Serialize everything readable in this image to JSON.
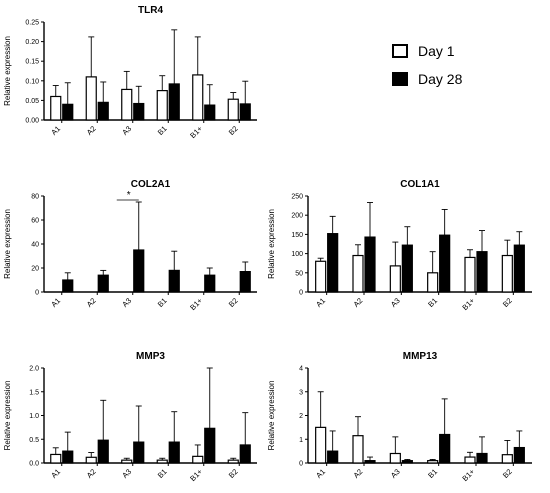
{
  "legend": {
    "day1": "Day 1",
    "day28": "Day 28"
  },
  "colors": {
    "day1_fill": "#ffffff",
    "day28_fill": "#000000",
    "stroke": "#000000"
  },
  "chart_data": [
    {
      "type": "bar",
      "title": "TLR4",
      "ylabel": "Relative expression",
      "categories": [
        "A1",
        "A2",
        "A3",
        "B1",
        "B1+",
        "B2"
      ],
      "ylim": [
        0,
        0.25
      ],
      "yticks": [
        "0.00",
        "0.05",
        "0.10",
        "0.15",
        "0.20",
        "0.25"
      ],
      "series": [
        {
          "name": "Day 1",
          "values": [
            0.06,
            0.11,
            0.078,
            0.075,
            0.115,
            0.053
          ],
          "errors": [
            0.028,
            0.102,
            0.046,
            0.038,
            0.097,
            0.017
          ]
        },
        {
          "name": "Day 28",
          "values": [
            0.04,
            0.045,
            0.042,
            0.092,
            0.038,
            0.041
          ],
          "errors": [
            0.055,
            0.052,
            0.044,
            0.138,
            0.052,
            0.058
          ]
        }
      ],
      "annotations": []
    },
    {
      "type": "bar",
      "title": "COL2A1",
      "ylabel": "Relative expression",
      "categories": [
        "A1",
        "A2",
        "A3",
        "B1",
        "B1+",
        "B2"
      ],
      "ylim": [
        0,
        80
      ],
      "yticks": [
        "0",
        "20",
        "40",
        "60",
        "80"
      ],
      "series": [
        {
          "name": "Day 1",
          "values": [
            0,
            0,
            0,
            0,
            0,
            0
          ],
          "errors": [
            0,
            0,
            0,
            0,
            0,
            0
          ]
        },
        {
          "name": "Day 28",
          "values": [
            10,
            14,
            35,
            18,
            14,
            17
          ],
          "errors": [
            6,
            4,
            40,
            16,
            6,
            8
          ]
        }
      ],
      "annotations": [
        "*"
      ]
    },
    {
      "type": "bar",
      "title": "COL1A1",
      "ylabel": "Relative expression",
      "categories": [
        "A1",
        "A2",
        "A3",
        "B1",
        "B1+",
        "B2"
      ],
      "ylim": [
        0,
        250
      ],
      "yticks": [
        "0",
        "50",
        "100",
        "150",
        "200",
        "250"
      ],
      "series": [
        {
          "name": "Day 1",
          "values": [
            80,
            95,
            68,
            50,
            90,
            95
          ],
          "errors": [
            8,
            28,
            62,
            55,
            20,
            40
          ]
        },
        {
          "name": "Day 28",
          "values": [
            152,
            143,
            122,
            148,
            105,
            122
          ],
          "errors": [
            45,
            90,
            48,
            67,
            55,
            35
          ]
        }
      ],
      "annotations": []
    },
    {
      "type": "bar",
      "title": "MMP3",
      "ylabel": "Relative expression",
      "categories": [
        "A1",
        "A2",
        "A3",
        "B1",
        "B1+",
        "B2"
      ],
      "ylim": [
        0,
        2.0
      ],
      "yticks": [
        "0.0",
        "0.5",
        "1.0",
        "1.5",
        "2.0"
      ],
      "series": [
        {
          "name": "Day 1",
          "values": [
            0.18,
            0.12,
            0.06,
            0.06,
            0.14,
            0.06
          ],
          "errors": [
            0.14,
            0.1,
            0.04,
            0.04,
            0.24,
            0.04
          ]
        },
        {
          "name": "Day 28",
          "values": [
            0.25,
            0.48,
            0.44,
            0.44,
            0.73,
            0.38
          ],
          "errors": [
            0.4,
            0.84,
            0.76,
            0.64,
            1.27,
            0.68
          ]
        }
      ],
      "annotations": []
    },
    {
      "type": "bar",
      "title": "MMP13",
      "ylabel": "Relative expression",
      "categories": [
        "A1",
        "A2",
        "A3",
        "B1",
        "B1+",
        "B2"
      ],
      "ylim": [
        0,
        4
      ],
      "yticks": [
        "0",
        "1",
        "2",
        "3",
        "4"
      ],
      "series": [
        {
          "name": "Day 1",
          "values": [
            1.5,
            1.15,
            0.4,
            0.1,
            0.25,
            0.35
          ],
          "errors": [
            1.5,
            0.8,
            0.7,
            0.05,
            0.2,
            0.6
          ]
        },
        {
          "name": "Day 28",
          "values": [
            0.5,
            0.1,
            0.1,
            1.2,
            0.4,
            0.65
          ],
          "errors": [
            0.85,
            0.15,
            0.05,
            1.5,
            0.7,
            0.7
          ]
        }
      ],
      "annotations": []
    }
  ]
}
